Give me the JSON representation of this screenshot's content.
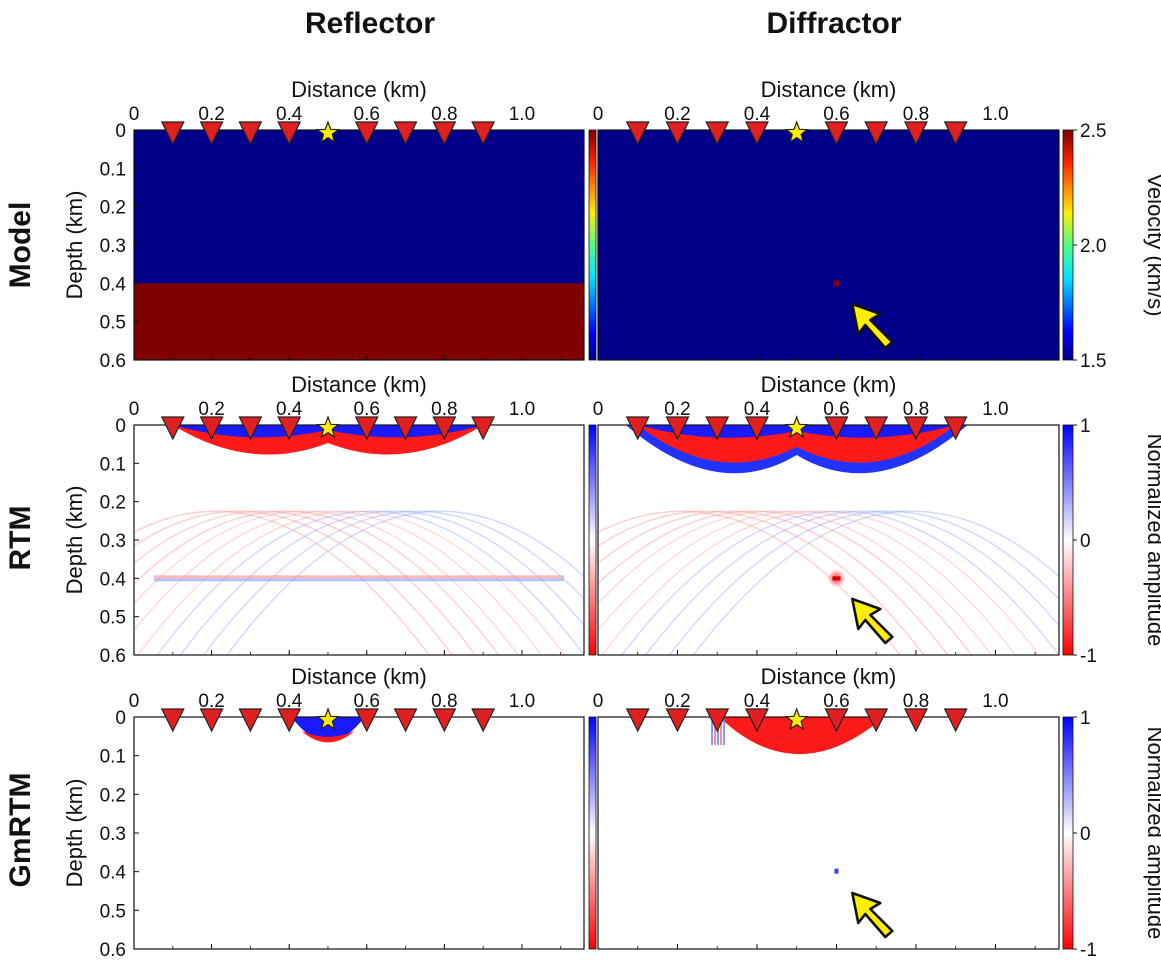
{
  "columns": [
    "Reflector",
    "Diffractor"
  ],
  "rows": [
    "Model",
    "RTM",
    "GmRTM"
  ],
  "x_axis": {
    "label": "Distance (km)",
    "ticks": [
      {
        "value": 0,
        "label": "0"
      },
      {
        "value": 0.2,
        "label": "0.2"
      },
      {
        "value": 0.4,
        "label": "0.4"
      },
      {
        "value": 0.6,
        "label": "0.6"
      },
      {
        "value": 0.8,
        "label": "0.8"
      },
      {
        "value": 1.0,
        "label": "1.0"
      }
    ],
    "range": [
      0,
      1.16
    ]
  },
  "y_axis": {
    "label": "Depth (km)",
    "ticks": [
      {
        "value": 0,
        "label": "0"
      },
      {
        "value": 0.1,
        "label": "0.1"
      },
      {
        "value": 0.2,
        "label": "0.2"
      },
      {
        "value": 0.3,
        "label": "0.3"
      },
      {
        "value": 0.4,
        "label": "0.4"
      },
      {
        "value": 0.5,
        "label": "0.5"
      },
      {
        "value": 0.6,
        "label": "0.6"
      }
    ],
    "range": [
      0,
      0.6
    ]
  },
  "colorbars": [
    {
      "label": "Velocity (km/s)",
      "ticks": [
        "2.5",
        "2.0",
        "1.5"
      ],
      "colormap": "jet"
    },
    {
      "label": "Normalized amplitude",
      "ticks": [
        "1",
        "0",
        "-1"
      ],
      "colormap": "blue-white-red"
    },
    {
      "label": "Normalized amplitude",
      "ticks": [
        "1",
        "0",
        "-1"
      ],
      "colormap": "blue-white-red"
    }
  ],
  "acquisition": {
    "receivers_km": [
      0.1,
      0.2,
      0.3,
      0.4,
      0.6,
      0.7,
      0.8,
      0.9
    ],
    "source_km": 0.5
  },
  "colors": {
    "background_velocity": "#00008b",
    "anomaly_velocity": "#800000",
    "positive": "#0000ff",
    "negative": "#ff0000",
    "receiver": "#e02020",
    "source": "#ffee00",
    "arrow": "#ffee00"
  },
  "chart_data": [
    {
      "panel": "Reflector / Model",
      "type": "heatmap",
      "content": "two-layer velocity model",
      "background_velocity_kms": 1.5,
      "layer_velocity_kms": 2.5,
      "interface_depth_km": 0.4
    },
    {
      "panel": "Diffractor / Model",
      "type": "heatmap",
      "content": "point diffractor",
      "background_velocity_kms": 1.5,
      "diffractor_velocity_kms": 2.5,
      "diffractor_x_km": 0.6,
      "diffractor_z_km": 0.4
    },
    {
      "panel": "Reflector / RTM",
      "type": "heatmap",
      "reflector_depth_km": 0.4,
      "near_surface_artifact": true
    },
    {
      "panel": "Diffractor / RTM",
      "type": "heatmap",
      "diffractor_x_km": 0.6,
      "diffractor_z_km": 0.4,
      "near_surface_artifact": true
    },
    {
      "panel": "Reflector / GmRTM",
      "type": "heatmap",
      "artifact_extent_km": [
        0.38,
        0.62
      ],
      "artifact_depth_km": 0.09
    },
    {
      "panel": "Diffractor / GmRTM",
      "type": "heatmap",
      "diffractor_x_km": 0.6,
      "diffractor_z_km": 0.4,
      "artifact_extent_km": [
        0.28,
        0.72
      ],
      "artifact_depth_km": 0.14
    }
  ]
}
